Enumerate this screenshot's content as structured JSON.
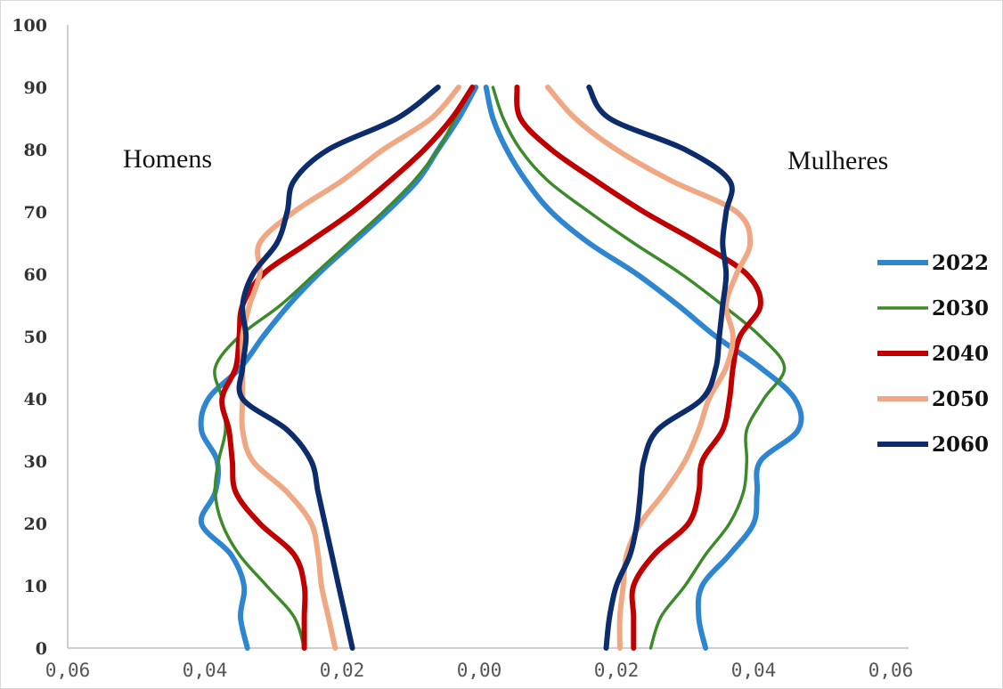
{
  "chart_data": {
    "type": "line",
    "title": "",
    "xlabel": "",
    "ylabel": "",
    "xlim": [
      -0.06,
      0.06
    ],
    "ylim": [
      0,
      100
    ],
    "x_tick_labels": [
      "0,06",
      "0,04",
      "0,02",
      "0,00",
      "0,02",
      "0,04",
      "0,06"
    ],
    "y_tick_labels": [
      "0",
      "10",
      "20",
      "30",
      "40",
      "50",
      "60",
      "70",
      "80",
      "90",
      "100"
    ],
    "annotations": {
      "left": "Homens",
      "right": "Mulheres"
    },
    "grid": false,
    "legend_position": "right",
    "series": [
      {
        "name": "2022",
        "color": "#2e86d0",
        "men": [
          [
            0,
            0.0338
          ],
          [
            5,
            0.0348
          ],
          [
            10,
            0.0343
          ],
          [
            15,
            0.0362
          ],
          [
            20,
            0.0405
          ],
          [
            25,
            0.0385
          ],
          [
            30,
            0.0382
          ],
          [
            35,
            0.0405
          ],
          [
            40,
            0.0395
          ],
          [
            45,
            0.0348
          ],
          [
            50,
            0.0315
          ],
          [
            55,
            0.0278
          ],
          [
            60,
            0.0235
          ],
          [
            65,
            0.0185
          ],
          [
            70,
            0.0135
          ],
          [
            75,
            0.009
          ],
          [
            80,
            0.006
          ],
          [
            85,
            0.003
          ],
          [
            90,
            0.0005
          ]
        ],
        "women": [
          [
            0,
            0.033
          ],
          [
            5,
            0.032
          ],
          [
            10,
            0.0325
          ],
          [
            15,
            0.0365
          ],
          [
            20,
            0.04
          ],
          [
            25,
            0.0405
          ],
          [
            30,
            0.041
          ],
          [
            35,
            0.0465
          ],
          [
            40,
            0.046
          ],
          [
            45,
            0.041
          ],
          [
            50,
            0.0345
          ],
          [
            55,
            0.029
          ],
          [
            60,
            0.023
          ],
          [
            65,
            0.016
          ],
          [
            70,
            0.0105
          ],
          [
            75,
            0.0068
          ],
          [
            80,
            0.004
          ],
          [
            85,
            0.002
          ],
          [
            90,
            0.001
          ]
        ]
      },
      {
        "name": "2030",
        "color": "#3d8a2a",
        "men": [
          [
            0,
            0.0255
          ],
          [
            5,
            0.027
          ],
          [
            10,
            0.031
          ],
          [
            15,
            0.035
          ],
          [
            20,
            0.0375
          ],
          [
            25,
            0.0385
          ],
          [
            30,
            0.038
          ],
          [
            35,
            0.037
          ],
          [
            40,
            0.0375
          ],
          [
            45,
            0.0385
          ],
          [
            50,
            0.035
          ],
          [
            55,
            0.029
          ],
          [
            60,
            0.024
          ],
          [
            65,
            0.019
          ],
          [
            70,
            0.014
          ],
          [
            75,
            0.0095
          ],
          [
            80,
            0.006
          ],
          [
            85,
            0.0035
          ],
          [
            90,
            0.001
          ]
        ],
        "women": [
          [
            0,
            0.025
          ],
          [
            5,
            0.0265
          ],
          [
            10,
            0.03
          ],
          [
            15,
            0.033
          ],
          [
            20,
            0.0365
          ],
          [
            25,
            0.0385
          ],
          [
            30,
            0.039
          ],
          [
            35,
            0.039
          ],
          [
            40,
            0.0415
          ],
          [
            45,
            0.0445
          ],
          [
            50,
            0.041
          ],
          [
            55,
            0.0355
          ],
          [
            60,
            0.0295
          ],
          [
            65,
            0.0225
          ],
          [
            70,
            0.016
          ],
          [
            75,
            0.01
          ],
          [
            80,
            0.006
          ],
          [
            85,
            0.0035
          ],
          [
            90,
            0.002
          ]
        ]
      },
      {
        "name": "2040",
        "color": "#c00000",
        "men": [
          [
            0,
            0.0255
          ],
          [
            5,
            0.0255
          ],
          [
            10,
            0.0255
          ],
          [
            15,
            0.027
          ],
          [
            20,
            0.032
          ],
          [
            25,
            0.0355
          ],
          [
            30,
            0.036
          ],
          [
            35,
            0.0365
          ],
          [
            40,
            0.0375
          ],
          [
            45,
            0.0355
          ],
          [
            50,
            0.035
          ],
          [
            55,
            0.0345
          ],
          [
            60,
            0.0315
          ],
          [
            65,
            0.025
          ],
          [
            70,
            0.0185
          ],
          [
            75,
            0.013
          ],
          [
            80,
            0.008
          ],
          [
            85,
            0.004
          ],
          [
            90,
            0.001
          ]
        ],
        "women": [
          [
            0,
            0.0225
          ],
          [
            5,
            0.0225
          ],
          [
            10,
            0.0225
          ],
          [
            15,
            0.0255
          ],
          [
            20,
            0.0305
          ],
          [
            25,
            0.032
          ],
          [
            30,
            0.0325
          ],
          [
            35,
            0.0355
          ],
          [
            40,
            0.0365
          ],
          [
            45,
            0.037
          ],
          [
            50,
            0.038
          ],
          [
            55,
            0.041
          ],
          [
            60,
            0.039
          ],
          [
            65,
            0.032
          ],
          [
            70,
            0.024
          ],
          [
            75,
            0.017
          ],
          [
            80,
            0.0105
          ],
          [
            85,
            0.006
          ],
          [
            90,
            0.0055
          ]
        ]
      },
      {
        "name": "2050",
        "color": "#f0a884",
        "men": [
          [
            0,
            0.021
          ],
          [
            5,
            0.022
          ],
          [
            10,
            0.023
          ],
          [
            15,
            0.0235
          ],
          [
            20,
            0.0245
          ],
          [
            25,
            0.028
          ],
          [
            30,
            0.033
          ],
          [
            35,
            0.0345
          ],
          [
            40,
            0.0345
          ],
          [
            45,
            0.0345
          ],
          [
            50,
            0.0345
          ],
          [
            55,
            0.0335
          ],
          [
            60,
            0.032
          ],
          [
            65,
            0.032
          ],
          [
            70,
            0.027
          ],
          [
            75,
            0.02
          ],
          [
            80,
            0.014
          ],
          [
            85,
            0.007
          ],
          [
            90,
            0.003
          ]
        ],
        "women": [
          [
            0,
            0.0205
          ],
          [
            5,
            0.0205
          ],
          [
            10,
            0.021
          ],
          [
            15,
            0.0215
          ],
          [
            20,
            0.0235
          ],
          [
            25,
            0.027
          ],
          [
            30,
            0.03
          ],
          [
            35,
            0.032
          ],
          [
            40,
            0.0335
          ],
          [
            45,
            0.036
          ],
          [
            50,
            0.037
          ],
          [
            55,
            0.036
          ],
          [
            60,
            0.0375
          ],
          [
            65,
            0.0395
          ],
          [
            70,
            0.0375
          ],
          [
            75,
            0.028
          ],
          [
            80,
            0.02
          ],
          [
            85,
            0.014
          ],
          [
            90,
            0.01
          ]
        ]
      },
      {
        "name": "2060",
        "color": "#0d2c6b",
        "men": [
          [
            0,
            0.0185
          ],
          [
            5,
            0.0195
          ],
          [
            10,
            0.0205
          ],
          [
            15,
            0.0215
          ],
          [
            20,
            0.0225
          ],
          [
            25,
            0.0235
          ],
          [
            30,
            0.0245
          ],
          [
            35,
            0.028
          ],
          [
            40,
            0.0345
          ],
          [
            45,
            0.0345
          ],
          [
            50,
            0.034
          ],
          [
            55,
            0.0345
          ],
          [
            60,
            0.033
          ],
          [
            65,
            0.0295
          ],
          [
            70,
            0.028
          ],
          [
            75,
            0.027
          ],
          [
            80,
            0.022
          ],
          [
            85,
            0.012
          ],
          [
            90,
            0.006
          ]
        ],
        "women": [
          [
            0,
            0.0185
          ],
          [
            5,
            0.019
          ],
          [
            10,
            0.02
          ],
          [
            15,
            0.022
          ],
          [
            20,
            0.023
          ],
          [
            25,
            0.0235
          ],
          [
            30,
            0.024
          ],
          [
            35,
            0.026
          ],
          [
            40,
            0.0325
          ],
          [
            45,
            0.0345
          ],
          [
            50,
            0.035
          ],
          [
            55,
            0.0355
          ],
          [
            60,
            0.036
          ],
          [
            65,
            0.0355
          ],
          [
            70,
            0.036
          ],
          [
            75,
            0.0365
          ],
          [
            80,
            0.03
          ],
          [
            85,
            0.019
          ],
          [
            90,
            0.016
          ]
        ]
      }
    ]
  }
}
